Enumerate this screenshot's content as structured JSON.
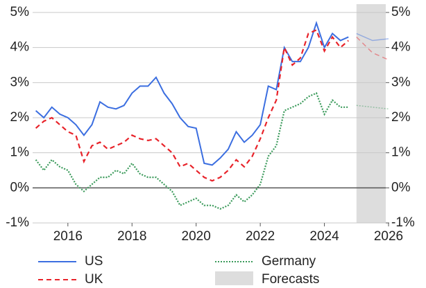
{
  "chart_data": {
    "type": "line",
    "x": [
      2015,
      2015.25,
      2015.5,
      2015.75,
      2016,
      2016.25,
      2016.5,
      2016.75,
      2017,
      2017.25,
      2017.5,
      2017.75,
      2018,
      2018.25,
      2018.5,
      2018.75,
      2019,
      2019.25,
      2019.5,
      2019.75,
      2020,
      2020.25,
      2020.5,
      2020.75,
      2021,
      2021.25,
      2021.5,
      2021.75,
      2022,
      2022.25,
      2022.5,
      2022.75,
      2023,
      2023.25,
      2023.5,
      2023.75,
      2024,
      2024.25,
      2024.5,
      2024.75
    ],
    "series": [
      {
        "name": "US",
        "color": "#3b6ee0",
        "dash": "solid",
        "values": [
          2.2,
          2.0,
          2.3,
          2.1,
          2.0,
          1.8,
          1.5,
          1.8,
          2.45,
          2.3,
          2.25,
          2.35,
          2.7,
          2.9,
          2.9,
          3.15,
          2.7,
          2.4,
          2.0,
          1.75,
          1.7,
          0.7,
          0.65,
          0.85,
          1.1,
          1.6,
          1.3,
          1.5,
          1.8,
          2.9,
          2.8,
          4.0,
          3.6,
          3.6,
          4.0,
          4.7,
          4.0,
          4.4,
          4.2,
          4.3
        ],
        "forecast_values": [
          4.4,
          4.2,
          4.25
        ]
      },
      {
        "name": "UK",
        "color": "#e8232a",
        "dash": "dashed",
        "values": [
          1.7,
          1.9,
          2.0,
          1.8,
          1.6,
          1.5,
          0.75,
          1.2,
          1.3,
          1.1,
          1.2,
          1.3,
          1.5,
          1.4,
          1.35,
          1.4,
          1.2,
          1.0,
          0.6,
          0.7,
          0.5,
          0.3,
          0.2,
          0.3,
          0.5,
          0.8,
          0.6,
          0.9,
          1.4,
          2.0,
          2.5,
          4.0,
          3.5,
          3.7,
          4.4,
          4.5,
          3.9,
          4.3,
          4.0,
          4.2
        ],
        "forecast_values": [
          4.3,
          3.85,
          3.65
        ]
      },
      {
        "name": "Germany",
        "color": "#3a9a5a",
        "dash": "dotted",
        "values": [
          0.8,
          0.5,
          0.8,
          0.6,
          0.5,
          0.1,
          -0.1,
          0.1,
          0.3,
          0.3,
          0.5,
          0.4,
          0.7,
          0.4,
          0.3,
          0.3,
          0.1,
          -0.1,
          -0.5,
          -0.4,
          -0.3,
          -0.5,
          -0.5,
          -0.6,
          -0.5,
          -0.2,
          -0.4,
          -0.2,
          0.1,
          0.9,
          1.2,
          2.2,
          2.3,
          2.4,
          2.6,
          2.7,
          2.1,
          2.5,
          2.3,
          2.3
        ],
        "forecast_values": [
          2.35,
          2.3,
          2.25
        ]
      }
    ],
    "forecast": {
      "name": "Forecasts",
      "color": "#dddddd",
      "xlim": [
        2025,
        2026
      ],
      "x": [
        2025,
        2025.5,
        2026
      ]
    },
    "xlim": [
      2014.9,
      2026
    ],
    "xticks": [
      2016,
      2018,
      2020,
      2022,
      2024,
      2026
    ],
    "ylim": [
      -1,
      5
    ],
    "yticks": [
      {
        "value": -1,
        "label": "-1%"
      },
      {
        "value": 0,
        "label": "0%"
      },
      {
        "value": 1,
        "label": "1%"
      },
      {
        "value": 2,
        "label": "2%"
      },
      {
        "value": 3,
        "label": "3%"
      },
      {
        "value": 4,
        "label": "4%"
      },
      {
        "value": 5,
        "label": "5%"
      }
    ],
    "y2lim": [
      -1,
      5
    ],
    "y2ticks": [
      {
        "value": -1,
        "label": "-1%"
      },
      {
        "value": 0,
        "label": "0%"
      },
      {
        "value": 1,
        "label": "1%"
      },
      {
        "value": 2,
        "label": "2%"
      },
      {
        "value": 3,
        "label": "3%"
      },
      {
        "value": 4,
        "label": "4%"
      },
      {
        "value": 5,
        "label": "5%"
      }
    ],
    "grid": true,
    "legend": "bottom"
  }
}
